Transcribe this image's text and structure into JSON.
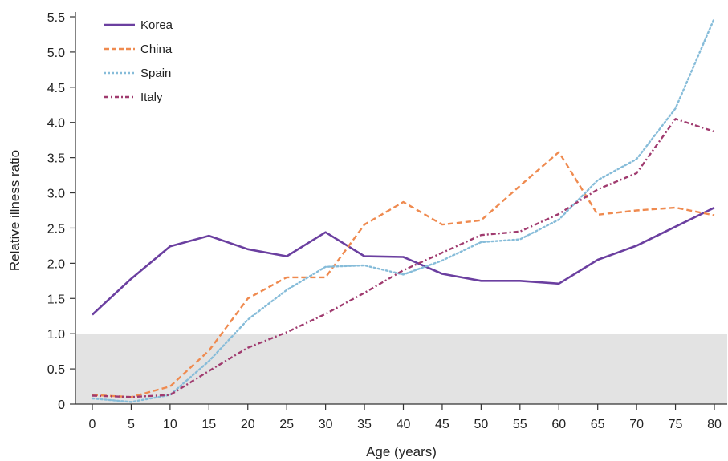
{
  "chart_data": {
    "type": "line",
    "xlabel": "Age (years)",
    "ylabel": "Relative illness ratio",
    "x": [
      0,
      5,
      10,
      15,
      20,
      25,
      30,
      35,
      40,
      45,
      50,
      55,
      60,
      65,
      70,
      75,
      80
    ],
    "x_tick_labels": [
      "0",
      "5",
      "10",
      "15",
      "20",
      "25",
      "30",
      "35",
      "40",
      "45",
      "50",
      "55",
      "60",
      "65",
      "70",
      "75",
      "80"
    ],
    "y_ticks": [
      0,
      0.5,
      1.0,
      1.5,
      2.0,
      2.5,
      3.0,
      3.5,
      4.0,
      4.5,
      5.0,
      5.5
    ],
    "y_tick_labels": [
      "0",
      "0.5",
      "1.0",
      "1.5",
      "2.0",
      "2.5",
      "3.0",
      "3.5",
      "4.0",
      "4.5",
      "5.0",
      "5.5"
    ],
    "ylim": [
      0,
      5.5
    ],
    "xlim": [
      0,
      80
    ],
    "shaded_band": {
      "y_from": 0,
      "y_to": 1.0,
      "color": "#e3e3e3"
    },
    "grid": false,
    "legend_position": "top-left",
    "series": [
      {
        "name": "Korea",
        "color": "#6b3fa0",
        "dash": "solid",
        "values": [
          1.27,
          1.78,
          2.24,
          2.39,
          2.2,
          2.1,
          2.44,
          2.1,
          2.09,
          1.85,
          1.75,
          1.75,
          1.71,
          2.05,
          2.25,
          2.52,
          2.79
        ]
      },
      {
        "name": "China",
        "color": "#ef8a4f",
        "dash": "dashed",
        "values": [
          0.13,
          0.1,
          0.25,
          0.76,
          1.5,
          1.8,
          1.8,
          2.55,
          2.87,
          2.55,
          2.61,
          3.1,
          3.58,
          2.69,
          2.75,
          2.79,
          2.68
        ]
      },
      {
        "name": "Spain",
        "color": "#86bcd9",
        "dash": "dotted",
        "values": [
          0.08,
          0.03,
          0.13,
          0.61,
          1.2,
          1.62,
          1.95,
          1.97,
          1.84,
          2.04,
          2.3,
          2.34,
          2.62,
          3.18,
          3.48,
          4.2,
          5.48
        ]
      },
      {
        "name": "Italy",
        "color": "#a03b6f",
        "dash": "dashdot",
        "values": [
          0.12,
          0.1,
          0.13,
          0.47,
          0.8,
          1.02,
          1.28,
          1.58,
          1.9,
          2.15,
          2.4,
          2.45,
          2.7,
          3.05,
          3.28,
          4.05,
          3.87
        ]
      }
    ]
  }
}
